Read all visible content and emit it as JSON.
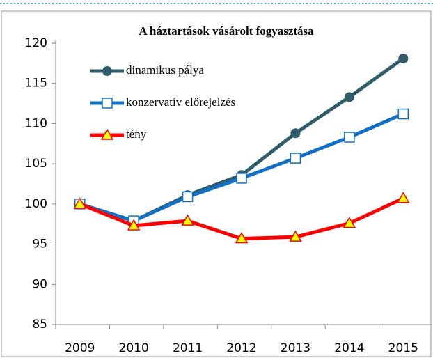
{
  "chart_data": {
    "type": "line",
    "title": "A háztartások vásárolt fogyasztása",
    "categories": [
      "2009",
      "2010",
      "2011",
      "2012",
      "2013",
      "2014",
      "2015"
    ],
    "series": [
      {
        "name": "dinamikus pálya",
        "color": "#2e5c68",
        "marker": "circle",
        "values": [
          100,
          97.9,
          101.1,
          103.6,
          108.8,
          113.3,
          118.1
        ]
      },
      {
        "name": "konzervatív előrejelzés",
        "color": "#1270c4",
        "marker": "square",
        "values": [
          100,
          97.9,
          100.9,
          103.2,
          105.7,
          108.3,
          111.2
        ]
      },
      {
        "name": "tény",
        "color": "#ff0000",
        "marker": "triangle",
        "values": [
          100,
          97.3,
          97.9,
          95.7,
          95.9,
          97.6,
          100.7
        ]
      }
    ],
    "ylim": [
      85,
      120
    ],
    "yticks": [
      85,
      90,
      95,
      100,
      105,
      110,
      115,
      120
    ],
    "grid": false,
    "legend": "upper left"
  }
}
